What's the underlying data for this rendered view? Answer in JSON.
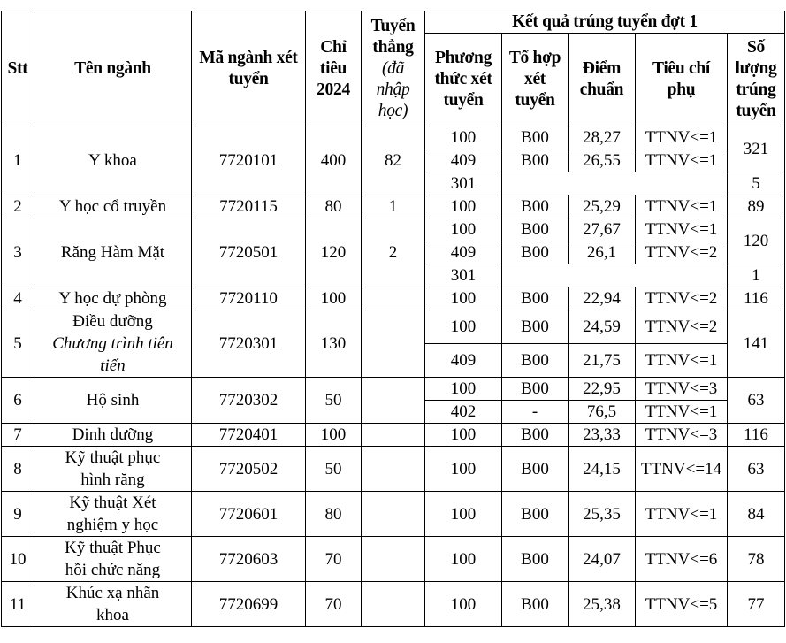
{
  "header": {
    "stt": "Stt",
    "ten_nganh": "Tên ngành",
    "ma_nganh": "Mã ngành xét tuyển",
    "chi_tieu": "Chỉ tiêu 2024",
    "tuyen_thang": "Tuyển thẳng",
    "tuyen_thang_note": "(đã nhập học)",
    "ket_qua": "Kết quả trúng tuyển đợt 1",
    "phuong_thuc": "Phương thức xét tuyển",
    "to_hop": "Tổ hợp xét tuyển",
    "diem_chuan": "Điểm chuẩn",
    "tieu_chi": "Tiêu chí phụ",
    "so_luong": "Số lượng trúng tuyển"
  },
  "rows": [
    {
      "stt": "1",
      "name": "Y khoa",
      "name_note": "",
      "code": "7720101",
      "quota": "400",
      "direct": "82",
      "groups": [
        {
          "count": "321",
          "subs": [
            {
              "method": "100",
              "combo": "B00",
              "score": "28,27",
              "crit": "TTNV<=1"
            },
            {
              "method": "409",
              "combo": "B00",
              "score": "26,55",
              "crit": "TTNV<=1"
            }
          ]
        },
        {
          "count": "5",
          "subs": [
            {
              "method": "301",
              "empty": true
            }
          ]
        }
      ]
    },
    {
      "stt": "2",
      "name": "Y học cổ truyền",
      "name_note": "",
      "code": "7720115",
      "quota": "80",
      "direct": "1",
      "groups": [
        {
          "count": "89",
          "subs": [
            {
              "method": "100",
              "combo": "B00",
              "score": "25,29",
              "crit": "TTNV<=1"
            }
          ]
        }
      ]
    },
    {
      "stt": "3",
      "name": "Răng Hàm Mặt",
      "name_note": "",
      "code": "7720501",
      "quota": "120",
      "direct": "2",
      "groups": [
        {
          "count": "120",
          "subs": [
            {
              "method": "100",
              "combo": "B00",
              "score": "27,67",
              "crit": "TTNV<=1"
            },
            {
              "method": "409",
              "combo": "B00",
              "score": "26,1",
              "crit": "TTNV<=2"
            }
          ]
        },
        {
          "count": "1",
          "subs": [
            {
              "method": "301",
              "empty": true
            }
          ]
        }
      ]
    },
    {
      "stt": "4",
      "name": "Y học dự phòng",
      "name_note": "",
      "code": "7720110",
      "quota": "100",
      "direct": "",
      "groups": [
        {
          "count": "116",
          "subs": [
            {
              "method": "100",
              "combo": "B00",
              "score": "22,94",
              "crit": "TTNV<=2"
            }
          ]
        }
      ]
    },
    {
      "stt": "5",
      "name": "Điều dưỡng",
      "name_note": "Chương trình tiên tiến",
      "code": "7720301",
      "quota": "130",
      "direct": "",
      "tall": true,
      "groups": [
        {
          "count": "141",
          "subs": [
            {
              "method": "100",
              "combo": "B00",
              "score": "24,59",
              "crit": "TTNV<=2"
            },
            {
              "method": "409",
              "combo": "B00",
              "score": "21,75",
              "crit": "TTNV<=1"
            }
          ]
        }
      ]
    },
    {
      "stt": "6",
      "name": "Hộ sinh",
      "name_note": "",
      "code": "7720302",
      "quota": "50",
      "direct": "",
      "groups": [
        {
          "count": "63",
          "subs": [
            {
              "method": "100",
              "combo": "B00",
              "score": "22,95",
              "crit": "TTNV<=3"
            },
            {
              "method": "402",
              "combo": "-",
              "score": "76,5",
              "crit": "TTNV<=1"
            }
          ]
        }
      ]
    },
    {
      "stt": "7",
      "name": "Dinh dưỡng",
      "name_note": "",
      "code": "7720401",
      "quota": "100",
      "direct": "",
      "groups": [
        {
          "count": "116",
          "subs": [
            {
              "method": "100",
              "combo": "B00",
              "score": "23,33",
              "crit": "TTNV<=3"
            }
          ]
        }
      ]
    },
    {
      "stt": "8",
      "name": "Kỹ thuật phục hình răng",
      "name_note": "",
      "code": "7720502",
      "quota": "50",
      "direct": "",
      "groups": [
        {
          "count": "63",
          "subs": [
            {
              "method": "100",
              "combo": "B00",
              "score": "24,15",
              "crit": "TTNV<=14"
            }
          ]
        }
      ]
    },
    {
      "stt": "9",
      "name": "Kỹ thuật Xét nghiệm y học",
      "name_note": "",
      "code": "7720601",
      "quota": "80",
      "direct": "",
      "groups": [
        {
          "count": "84",
          "subs": [
            {
              "method": "100",
              "combo": "B00",
              "score": "25,35",
              "crit": "TTNV<=1"
            }
          ]
        }
      ]
    },
    {
      "stt": "10",
      "name": "Kỹ thuật Phục hồi chức năng",
      "name_note": "",
      "code": "7720603",
      "quota": "70",
      "direct": "",
      "groups": [
        {
          "count": "78",
          "subs": [
            {
              "method": "100",
              "combo": "B00",
              "score": "24,07",
              "crit": "TTNV<=6"
            }
          ]
        }
      ]
    },
    {
      "stt": "11",
      "name": "Khúc xạ nhãn khoa",
      "name_note": "",
      "code": "7720699",
      "quota": "70",
      "direct": "",
      "groups": [
        {
          "count": "77",
          "subs": [
            {
              "method": "100",
              "combo": "B00",
              "score": "25,38",
              "crit": "TTNV<=5"
            }
          ]
        }
      ]
    }
  ]
}
